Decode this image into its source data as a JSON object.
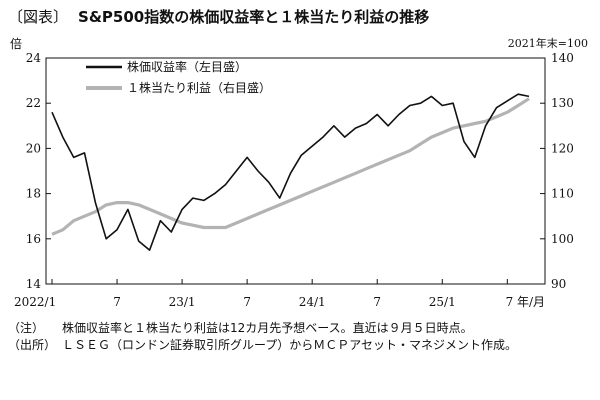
{
  "header": {
    "tag": "〔図表〕",
    "title": "S&P500指数の株価収益率と１株当たり利益の推移"
  },
  "units": {
    "left": "倍",
    "right": "2021年末=100"
  },
  "notes": [
    {
      "head": "（注）",
      "text": "株価収益率と１株当たり利益は12カ月先予想ベース。直近は９月５日時点。"
    },
    {
      "head": "（出所）",
      "text": "ＬＳＥＧ（ロンドン証券取引所グループ）からＭＣＰアセット・マネジメント作成。"
    }
  ],
  "chart_data": {
    "type": "line",
    "legend_position": "top-left",
    "grid": false,
    "x_axis": {
      "range": [
        "2022-01",
        "2025-09"
      ],
      "tick_labels": [
        "2022/1",
        "7",
        "23/1",
        "7",
        "24/1",
        "7",
        "25/1",
        "7 年/月"
      ]
    },
    "y_left": {
      "range": [
        14,
        24
      ],
      "ticks": [
        14,
        16,
        18,
        20,
        22,
        24
      ]
    },
    "y_right": {
      "range": [
        90,
        140
      ],
      "ticks": [
        90,
        100,
        110,
        120,
        130,
        140
      ]
    },
    "series": [
      {
        "name": "株価収益率（左目盛）",
        "axis": "left",
        "color": "#111111",
        "points": [
          [
            "2022-01",
            21.6
          ],
          [
            "2022-02",
            20.5
          ],
          [
            "2022-03",
            19.6
          ],
          [
            "2022-04",
            19.8
          ],
          [
            "2022-05",
            17.6
          ],
          [
            "2022-06",
            16.0
          ],
          [
            "2022-07",
            16.4
          ],
          [
            "2022-08",
            17.3
          ],
          [
            "2022-09",
            15.9
          ],
          [
            "2022-10",
            15.5
          ],
          [
            "2022-11",
            16.8
          ],
          [
            "2022-12",
            16.3
          ],
          [
            "2023-01",
            17.3
          ],
          [
            "2023-02",
            17.8
          ],
          [
            "2023-03",
            17.7
          ],
          [
            "2023-04",
            18.0
          ],
          [
            "2023-05",
            18.4
          ],
          [
            "2023-06",
            19.0
          ],
          [
            "2023-07",
            19.6
          ],
          [
            "2023-08",
            19.0
          ],
          [
            "2023-09",
            18.5
          ],
          [
            "2023-10",
            17.8
          ],
          [
            "2023-11",
            18.9
          ],
          [
            "2023-12",
            19.7
          ],
          [
            "2024-01",
            20.1
          ],
          [
            "2024-02",
            20.5
          ],
          [
            "2024-03",
            21.0
          ],
          [
            "2024-04",
            20.5
          ],
          [
            "2024-05",
            20.9
          ],
          [
            "2024-06",
            21.1
          ],
          [
            "2024-07",
            21.5
          ],
          [
            "2024-08",
            21.0
          ],
          [
            "2024-09",
            21.5
          ],
          [
            "2024-10",
            21.9
          ],
          [
            "2024-11",
            22.0
          ],
          [
            "2024-12",
            22.3
          ],
          [
            "2025-01",
            21.9
          ],
          [
            "2025-02",
            22.0
          ],
          [
            "2025-03",
            20.3
          ],
          [
            "2025-04",
            19.6
          ],
          [
            "2025-05",
            21.0
          ],
          [
            "2025-06",
            21.8
          ],
          [
            "2025-07",
            22.1
          ],
          [
            "2025-08",
            22.4
          ],
          [
            "2025-09",
            22.3
          ]
        ]
      },
      {
        "name": "１株当たり利益（右目盛）",
        "axis": "right",
        "color": "#b3b3b3",
        "points": [
          [
            "2022-01",
            101
          ],
          [
            "2022-02",
            102
          ],
          [
            "2022-03",
            104
          ],
          [
            "2022-04",
            105
          ],
          [
            "2022-05",
            106
          ],
          [
            "2022-06",
            107.5
          ],
          [
            "2022-07",
            108
          ],
          [
            "2022-08",
            108
          ],
          [
            "2022-09",
            107.5
          ],
          [
            "2022-10",
            106.5
          ],
          [
            "2022-11",
            105.5
          ],
          [
            "2022-12",
            104.5
          ],
          [
            "2023-01",
            103.5
          ],
          [
            "2023-02",
            103
          ],
          [
            "2023-03",
            102.5
          ],
          [
            "2023-04",
            102.5
          ],
          [
            "2023-05",
            102.5
          ],
          [
            "2023-06",
            103.5
          ],
          [
            "2023-07",
            104.5
          ],
          [
            "2023-08",
            105.5
          ],
          [
            "2023-09",
            106.5
          ],
          [
            "2023-10",
            107.5
          ],
          [
            "2023-11",
            108.5
          ],
          [
            "2023-12",
            109.5
          ],
          [
            "2024-01",
            110.5
          ],
          [
            "2024-02",
            111.5
          ],
          [
            "2024-03",
            112.5
          ],
          [
            "2024-04",
            113.5
          ],
          [
            "2024-05",
            114.5
          ],
          [
            "2024-06",
            115.5
          ],
          [
            "2024-07",
            116.5
          ],
          [
            "2024-08",
            117.5
          ],
          [
            "2024-09",
            118.5
          ],
          [
            "2024-10",
            119.5
          ],
          [
            "2024-11",
            121
          ],
          [
            "2024-12",
            122.5
          ],
          [
            "2025-01",
            123.5
          ],
          [
            "2025-02",
            124.5
          ],
          [
            "2025-03",
            125
          ],
          [
            "2025-04",
            125.5
          ],
          [
            "2025-05",
            126
          ],
          [
            "2025-06",
            127
          ],
          [
            "2025-07",
            128
          ],
          [
            "2025-08",
            129.5
          ],
          [
            "2025-09",
            131
          ]
        ]
      }
    ]
  }
}
